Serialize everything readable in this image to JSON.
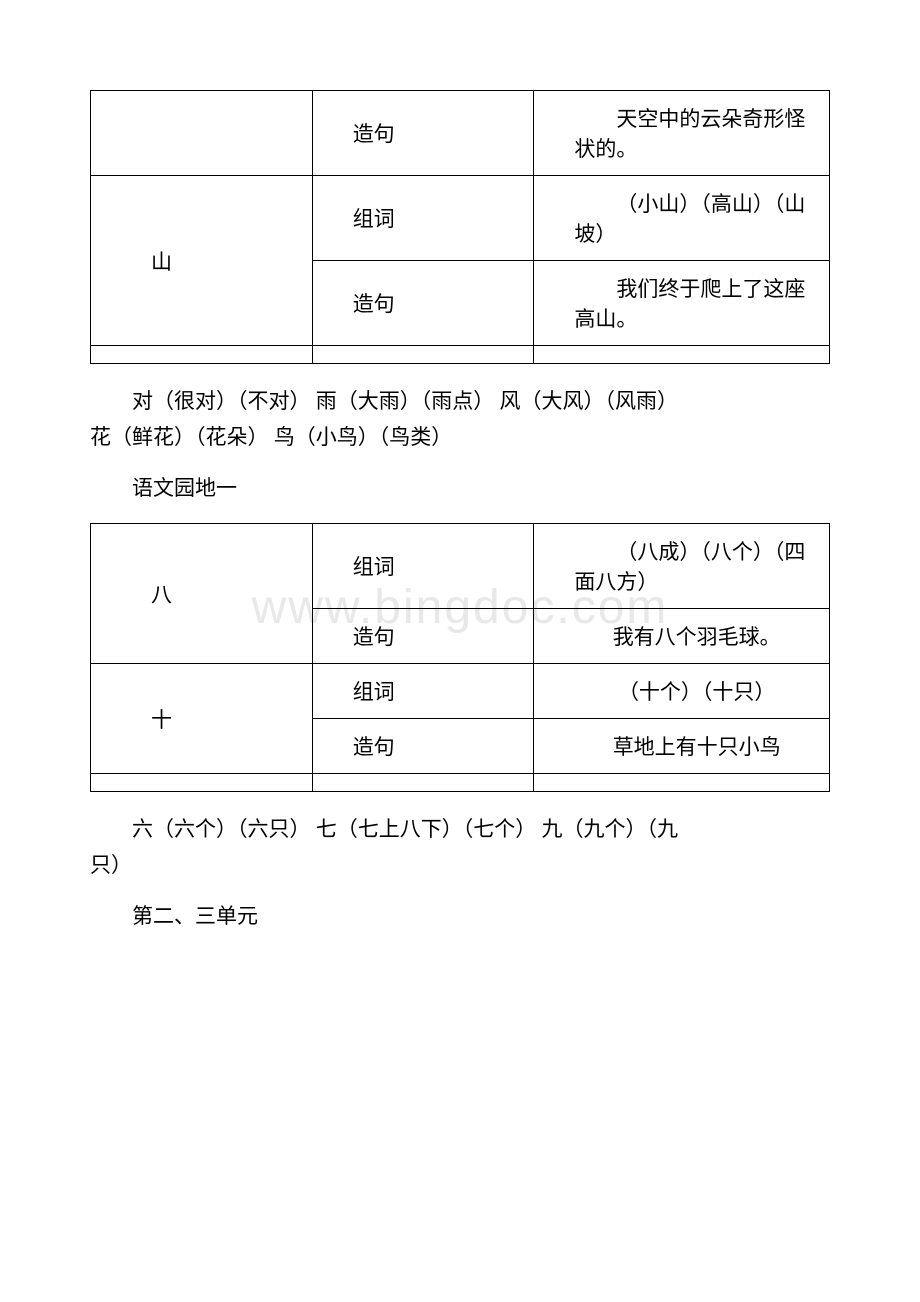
{
  "table1": {
    "rows": [
      {
        "char": "",
        "type": "造句",
        "content": "天空中的云朵奇形怪状的。",
        "rowspan": 1
      },
      {
        "char": "山",
        "type": "组词",
        "content": "（小山）（高山）（山坡）",
        "rowspan": 2
      },
      {
        "char": "",
        "type": "造句",
        "content": "我们终于爬上了这座高山。",
        "rowspan": 0
      }
    ],
    "colors": {
      "border": "#000000",
      "background": "#ffffff",
      "text": "#000000"
    },
    "fontsize": 21,
    "col_widths": [
      "30%",
      "30%",
      "40%"
    ]
  },
  "para1_line1": "对（很对）（不对） 雨（大雨）（雨点） 风（大风）（风雨）",
  "para1_line2": "花（鲜花）（花朵） 鸟（小鸟）（鸟类）",
  "para2": "语文园地一",
  "table2": {
    "rows": [
      {
        "char": "八",
        "type": "组词",
        "content": "（八成）（八个）（四面八方）"
      },
      {
        "char": "",
        "type": "造句",
        "content": "我有八个羽毛球。"
      },
      {
        "char": "十",
        "type": "组词",
        "content": "（十个）（十只）"
      },
      {
        "char": "",
        "type": "造句",
        "content": "草地上有十只小鸟"
      }
    ],
    "colors": {
      "border": "#000000",
      "background": "#ffffff",
      "text": "#000000"
    },
    "fontsize": 21,
    "col_widths": [
      "30%",
      "30%",
      "40%"
    ]
  },
  "para3_line1": "六（六个）（六只） 七（七上八下）（七个） 九（九个）（九",
  "para3_line2": "只）",
  "para4": "第二、三单元",
  "watermark": "www.bingdoc.com",
  "watermark_color": "#e8e8e8",
  "watermark_fontsize": 48
}
